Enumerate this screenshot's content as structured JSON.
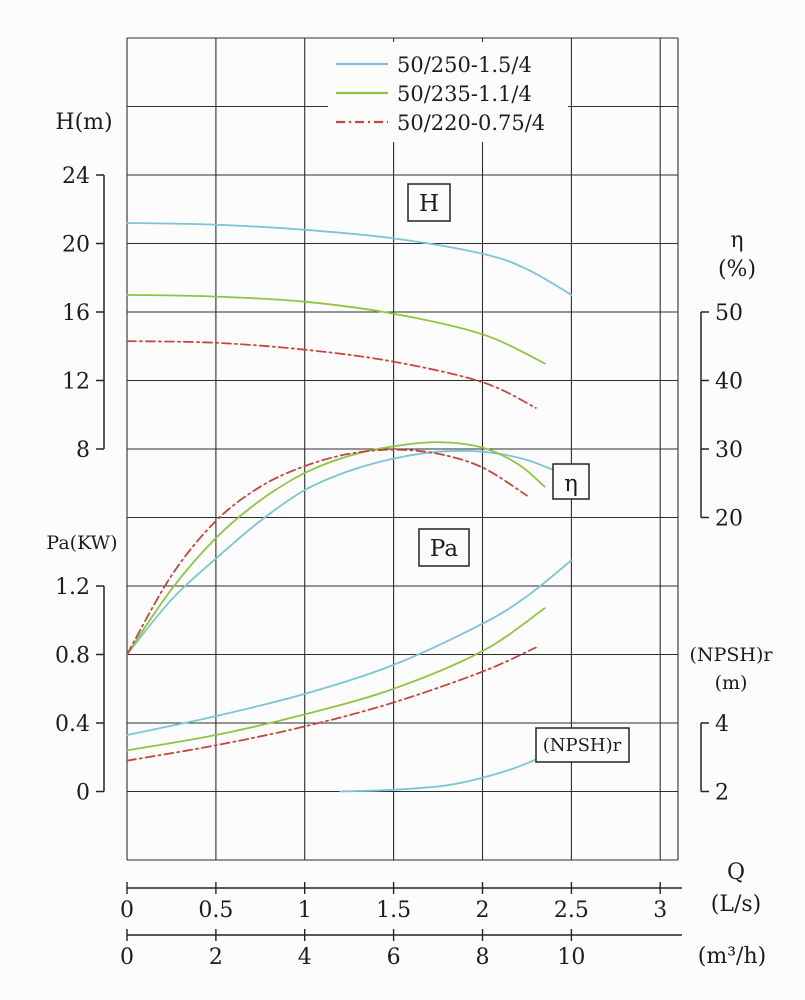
{
  "figure": {
    "kind": "pump-performance-curve-chart",
    "background": "#fcfcfc",
    "ink_color": "#242424"
  },
  "labels": {
    "h_axis": "H(m)",
    "pa_axis": "Pa(KW)",
    "eta_axis": "η",
    "eta_unit": "(%)",
    "npsh_axis": "(NPSH)r",
    "npsh_unit": "(m)",
    "q_axis": "Q",
    "q_unit_ls": "(L/s)",
    "q_unit_m3h": "(m³/h)",
    "curve_box_h": "H",
    "curve_box_eta": "η",
    "curve_box_pa": "Pa",
    "curve_box_npsh": "(NPSH)r"
  },
  "legend": {
    "items": [
      {
        "label": "50/250-1.5/4",
        "color": "#7cc4d6",
        "style": "solid"
      },
      {
        "label": "50/235-1.1/4",
        "color": "#8fc542",
        "style": "solid"
      },
      {
        "label": "50/220-0.75/4",
        "color": "#c8453c",
        "style": "dashdot"
      }
    ]
  },
  "chart_data": {
    "type": "line",
    "title": "Pump performance curves (H, η, Pa, (NPSH)r vs Q)",
    "x_axis": {
      "label": "Q",
      "primary_unit": "L/s",
      "primary_ticks": [
        0,
        0.5,
        1,
        1.5,
        2,
        2.5,
        3
      ],
      "primary_tick_labels": [
        "0",
        "0.5",
        "1",
        "1.5",
        "2",
        "2.5",
        "3"
      ],
      "secondary_unit": "m³/h",
      "secondary_ticks": [
        0,
        2,
        4,
        6,
        8,
        10
      ],
      "secondary_tick_labels": [
        "0",
        "2",
        "4",
        "6",
        "8",
        "10"
      ],
      "secondary_per_primary": 4,
      "range": [
        0,
        3.1
      ],
      "grid": true
    },
    "y_axes": {
      "H": {
        "label": "H(m)",
        "ticks": [
          24,
          20,
          16,
          12,
          8
        ],
        "tick_labels": [
          "24",
          "20",
          "16",
          "12",
          "8"
        ]
      },
      "Pa": {
        "label": "Pa(KW)",
        "ticks": [
          1.2,
          0.8,
          0.4,
          0
        ],
        "tick_labels": [
          "1.2",
          "0.8",
          "0.4",
          "0"
        ]
      },
      "eta": {
        "label": "η(%)",
        "ticks": [
          50,
          40,
          30,
          20
        ],
        "tick_labels": [
          "50",
          "40",
          "30",
          "20"
        ]
      },
      "NPSHr": {
        "label": "(NPSH)r (m)",
        "ticks": [
          4,
          2
        ],
        "tick_labels": [
          "4",
          "2"
        ]
      }
    },
    "series": [
      {
        "name": "50/250-1.5/4",
        "color": "#7cc4d6",
        "style": "solid",
        "H_m": [
          [
            0,
            21.2
          ],
          [
            0.5,
            21.1
          ],
          [
            1,
            20.8
          ],
          [
            1.5,
            20.3
          ],
          [
            2,
            19.4
          ],
          [
            2.25,
            18.5
          ],
          [
            2.5,
            17.0
          ]
        ],
        "eta_pct": [
          [
            0,
            0
          ],
          [
            0.25,
            8
          ],
          [
            0.5,
            14
          ],
          [
            0.75,
            19.5
          ],
          [
            1,
            24
          ],
          [
            1.25,
            26.8
          ],
          [
            1.5,
            28.6
          ],
          [
            1.75,
            29.6
          ],
          [
            2,
            29.6
          ],
          [
            2.25,
            28.4
          ],
          [
            2.5,
            25.8
          ]
        ],
        "Pa_kW": [
          [
            0,
            0.33
          ],
          [
            0.5,
            0.44
          ],
          [
            1,
            0.57
          ],
          [
            1.5,
            0.74
          ],
          [
            2,
            0.98
          ],
          [
            2.25,
            1.14
          ],
          [
            2.5,
            1.35
          ]
        ],
        "NPSHr_m": [
          [
            1.2,
            2.0
          ],
          [
            1.5,
            2.05
          ],
          [
            1.8,
            2.18
          ],
          [
            2,
            2.4
          ],
          [
            2.2,
            2.72
          ],
          [
            2.35,
            3.05
          ]
        ]
      },
      {
        "name": "50/235-1.1/4",
        "color": "#8fc542",
        "style": "solid",
        "H_m": [
          [
            0,
            17.0
          ],
          [
            0.5,
            16.9
          ],
          [
            1,
            16.6
          ],
          [
            1.5,
            15.9
          ],
          [
            2,
            14.7
          ],
          [
            2.35,
            13.0
          ]
        ],
        "eta_pct": [
          [
            0,
            0
          ],
          [
            0.25,
            9.5
          ],
          [
            0.5,
            17
          ],
          [
            0.75,
            22.5
          ],
          [
            1,
            26.5
          ],
          [
            1.25,
            29
          ],
          [
            1.5,
            30.4
          ],
          [
            1.75,
            31
          ],
          [
            2,
            30.2
          ],
          [
            2.2,
            27.8
          ],
          [
            2.35,
            24.5
          ]
        ],
        "Pa_kW": [
          [
            0,
            0.24
          ],
          [
            0.5,
            0.33
          ],
          [
            1,
            0.45
          ],
          [
            1.5,
            0.6
          ],
          [
            2,
            0.82
          ],
          [
            2.35,
            1.07
          ]
        ]
      },
      {
        "name": "50/220-0.75/4",
        "color": "#c8453c",
        "style": "dashdot",
        "H_m": [
          [
            0,
            14.3
          ],
          [
            0.5,
            14.2
          ],
          [
            1,
            13.8
          ],
          [
            1.5,
            13.1
          ],
          [
            2,
            11.9
          ],
          [
            2.3,
            10.4
          ]
        ],
        "eta_pct": [
          [
            0,
            0
          ],
          [
            0.25,
            11.5
          ],
          [
            0.5,
            19.5
          ],
          [
            0.75,
            24.5
          ],
          [
            1,
            27.5
          ],
          [
            1.25,
            29.3
          ],
          [
            1.5,
            29.9
          ],
          [
            1.75,
            29.3
          ],
          [
            2,
            27.3
          ],
          [
            2.25,
            23.2
          ]
        ],
        "Pa_kW": [
          [
            0,
            0.18
          ],
          [
            0.5,
            0.27
          ],
          [
            1,
            0.38
          ],
          [
            1.5,
            0.52
          ],
          [
            2,
            0.7
          ],
          [
            2.3,
            0.84
          ]
        ]
      }
    ]
  }
}
